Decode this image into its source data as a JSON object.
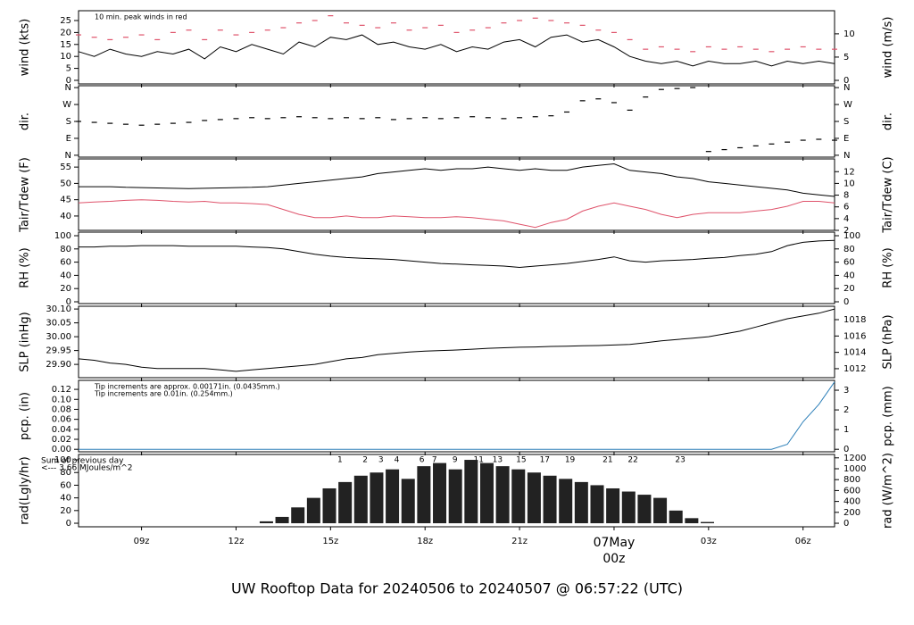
{
  "title": "UW Rooftop Data for 20240506  to  20240507 @ 06:57:22  (UTC)",
  "title_color": "#2297e6",
  "chart_data": [
    {
      "type": "line",
      "ylabel": "wind (kts)",
      "y2label": "wind (m/s)",
      "xlim": [
        7,
        31
      ],
      "ylim": [
        -1.5,
        29.1
      ],
      "yticks": [
        0,
        5,
        10,
        15,
        20,
        25
      ],
      "y2lim": [
        -0.77,
        14.97
      ],
      "y2ticks": [
        0,
        5,
        10
      ],
      "annotations": [
        {
          "text": "10 min. peak winds in red",
          "color": "#df536b"
        }
      ],
      "x": [
        7,
        7.5,
        8,
        8.5,
        9,
        9.5,
        10,
        10.5,
        11,
        11.5,
        12,
        12.5,
        13,
        13.5,
        14,
        14.5,
        15,
        15.5,
        16,
        16.5,
        17,
        17.5,
        18,
        18.5,
        19,
        19.5,
        20,
        20.5,
        21,
        21.5,
        22,
        22.5,
        23,
        23.5,
        24,
        24.5,
        25,
        25.5,
        26,
        26.5,
        27,
        27.5,
        28,
        28.5,
        29,
        29.5,
        30,
        30.5,
        31
      ],
      "series": [
        {
          "name": "wind",
          "color": "#000000",
          "mark": "line",
          "values": [
            12,
            10,
            13,
            11,
            10,
            12,
            11,
            13,
            9,
            14,
            12,
            15,
            13,
            11,
            16,
            14,
            18,
            17,
            19,
            15,
            16,
            14,
            13,
            15,
            12,
            14,
            13,
            16,
            17,
            14,
            18,
            19,
            16,
            17,
            14,
            10,
            8,
            7,
            8,
            6,
            8,
            7,
            7,
            8,
            6,
            8,
            7,
            8,
            7
          ]
        },
        {
          "name": "peak",
          "color": "#df536b",
          "mark": "dash",
          "values": [
            19,
            18,
            17,
            18,
            19,
            17,
            20,
            21,
            17,
            21,
            19,
            20,
            21,
            22,
            24,
            25,
            27,
            24,
            23,
            22,
            24,
            21,
            22,
            23,
            20,
            21,
            22,
            24,
            25,
            26,
            25,
            24,
            23,
            21,
            20,
            17,
            13,
            14,
            13,
            12,
            14,
            13,
            14,
            13,
            12,
            13,
            14,
            13,
            13
          ]
        }
      ]
    },
    {
      "type": "scatter",
      "ylabel": "dir.",
      "y2label": "dir.",
      "xlim": [
        7,
        31
      ],
      "ylim": [
        -10,
        370
      ],
      "yticks": [
        {
          "value": 360,
          "label": "N"
        },
        {
          "value": 270,
          "label": "W"
        },
        {
          "value": 180,
          "label": "S"
        },
        {
          "value": 90,
          "label": "E"
        },
        {
          "value": 0,
          "label": "N"
        }
      ],
      "y2lim": [
        -10,
        370
      ],
      "y2ticks": [
        {
          "value": 360,
          "label": "N"
        },
        {
          "value": 270,
          "label": "W"
        },
        {
          "value": 180,
          "label": "S"
        },
        {
          "value": 90,
          "label": "E"
        },
        {
          "value": 0,
          "label": "N"
        }
      ],
      "x": [
        7,
        7.5,
        8,
        8.5,
        9,
        9.5,
        10,
        10.5,
        11,
        11.5,
        12,
        12.5,
        13,
        13.5,
        14,
        14.5,
        15,
        15.5,
        16,
        16.5,
        17,
        17.5,
        18,
        18.5,
        19,
        19.5,
        20,
        20.5,
        21,
        21.5,
        22,
        22.5,
        23,
        23.5,
        24,
        24.5,
        25,
        25.5,
        26,
        26.5,
        27,
        27.5,
        28,
        28.5,
        29,
        29.5,
        30,
        30.5,
        31
      ],
      "series": [
        {
          "name": "direction",
          "color": "#000000",
          "mark": "dash",
          "values": [
            180,
            175,
            170,
            165,
            160,
            165,
            170,
            175,
            185,
            190,
            195,
            200,
            195,
            200,
            205,
            200,
            195,
            200,
            195,
            200,
            190,
            195,
            200,
            195,
            200,
            205,
            200,
            195,
            200,
            205,
            210,
            230,
            290,
            300,
            280,
            240,
            310,
            350,
            355,
            360,
            20,
            30,
            40,
            50,
            60,
            70,
            80,
            85,
            80
          ]
        }
      ]
    },
    {
      "type": "line",
      "ylabel": "Tair/Tdew (F)",
      "y2label": "Tair/Tdew (C)",
      "xlim": [
        7,
        31
      ],
      "ylim": [
        35.6,
        57.5
      ],
      "yticks": [
        40,
        45,
        50,
        55
      ],
      "y2lim": [
        2,
        14.17
      ],
      "y2ticks": [
        2,
        4,
        6,
        8,
        10,
        12
      ],
      "x": [
        7,
        7.5,
        8,
        8.5,
        9,
        9.5,
        10,
        10.5,
        11,
        11.5,
        12,
        12.5,
        13,
        13.5,
        14,
        14.5,
        15,
        15.5,
        16,
        16.5,
        17,
        17.5,
        18,
        18.5,
        19,
        19.5,
        20,
        20.5,
        21,
        21.5,
        22,
        22.5,
        23,
        23.5,
        24,
        24.5,
        25,
        25.5,
        26,
        26.5,
        27,
        27.5,
        28,
        28.5,
        29,
        29.5,
        30,
        30.5,
        31
      ],
      "series": [
        {
          "name": "Tair",
          "color": "#000000",
          "mark": "line",
          "values": [
            49,
            49,
            49,
            48.8,
            48.7,
            48.6,
            48.5,
            48.4,
            48.5,
            48.6,
            48.7,
            48.8,
            49,
            49.5,
            50,
            50.5,
            51,
            51.5,
            52,
            53,
            53.5,
            54,
            54.5,
            54,
            54.5,
            54.5,
            55,
            54.5,
            54,
            54.5,
            54,
            54,
            55,
            55.5,
            56,
            54,
            53.5,
            53,
            52,
            51.5,
            50.5,
            50,
            49.5,
            49,
            48.5,
            48,
            47,
            46.5,
            46
          ]
        },
        {
          "name": "Tdew",
          "color": "#df536b",
          "mark": "line",
          "values": [
            44,
            44.3,
            44.5,
            44.8,
            45,
            44.8,
            44.5,
            44.3,
            44.5,
            44,
            44,
            43.8,
            43.5,
            42,
            40.5,
            39.5,
            39.5,
            40,
            39.5,
            39.5,
            40,
            39.8,
            39.5,
            39.5,
            39.8,
            39.5,
            39,
            38.5,
            37.5,
            36.5,
            38,
            39,
            41.5,
            43,
            44,
            43,
            42,
            40.5,
            39.5,
            40.5,
            41,
            41,
            41,
            41.5,
            42,
            43,
            44.5,
            44.5,
            44
          ]
        }
      ]
    },
    {
      "type": "line",
      "ylabel": "RH (%)",
      "y2label": "RH (%)",
      "xlim": [
        7,
        31
      ],
      "ylim": [
        -2.7,
        105.4
      ],
      "yticks": [
        0,
        20,
        40,
        60,
        80,
        100
      ],
      "y2lim": [
        -2.7,
        105.4
      ],
      "y2ticks": [
        0,
        20,
        40,
        60,
        80,
        100
      ],
      "x": [
        7,
        7.5,
        8,
        8.5,
        9,
        9.5,
        10,
        10.5,
        11,
        11.5,
        12,
        12.5,
        13,
        13.5,
        14,
        14.5,
        15,
        15.5,
        16,
        16.5,
        17,
        17.5,
        18,
        18.5,
        19,
        19.5,
        20,
        20.5,
        21,
        21.5,
        22,
        22.5,
        23,
        23.5,
        24,
        24.5,
        25,
        25.5,
        26,
        26.5,
        27,
        27.5,
        28,
        28.5,
        29,
        29.5,
        30,
        30.5,
        31
      ],
      "series": [
        {
          "name": "RH",
          "color": "#000000",
          "mark": "line",
          "values": [
            83,
            83,
            84,
            84,
            85,
            85,
            85,
            84,
            84,
            84,
            84,
            83,
            82,
            80,
            76,
            72,
            69,
            67,
            66,
            65,
            64,
            62,
            60,
            58,
            57,
            56,
            55,
            54,
            52,
            54,
            56,
            58,
            61,
            64,
            68,
            62,
            60,
            62,
            63,
            64,
            66,
            67,
            70,
            72,
            76,
            85,
            90,
            92,
            93
          ]
        }
      ]
    },
    {
      "type": "line",
      "ylabel": "SLP (inHg)",
      "y2label": "SLP (hPa)",
      "xlim": [
        7,
        31
      ],
      "ylim": [
        29.852,
        30.11
      ],
      "yticks": [
        {
          "value": 29.9,
          "label": "29.90"
        },
        29.95,
        {
          "value": 30,
          "label": "30.00"
        },
        30.05,
        {
          "value": 30.1,
          "label": "30.10"
        }
      ],
      "y2lim": [
        1010.9,
        1019.64
      ],
      "y2ticks": [
        1012,
        1014,
        1016,
        1018
      ],
      "x": [
        7,
        7.5,
        8,
        8.5,
        9,
        9.5,
        10,
        10.5,
        11,
        11.5,
        12,
        12.5,
        13,
        13.5,
        14,
        14.5,
        15,
        15.5,
        16,
        16.5,
        17,
        17.5,
        18,
        18.5,
        19,
        19.5,
        20,
        20.5,
        21,
        21.5,
        22,
        22.5,
        23,
        23.5,
        24,
        24.5,
        25,
        25.5,
        26,
        26.5,
        27,
        27.5,
        28,
        28.5,
        29,
        29.5,
        30,
        30.5,
        31
      ],
      "series": [
        {
          "name": "SLP",
          "color": "#000000",
          "mark": "line",
          "values": [
            29.92,
            29.915,
            29.905,
            29.9,
            29.89,
            29.885,
            29.885,
            29.885,
            29.885,
            29.88,
            29.875,
            29.88,
            29.885,
            29.89,
            29.895,
            29.9,
            29.91,
            29.92,
            29.925,
            29.935,
            29.94,
            29.945,
            29.948,
            29.95,
            29.952,
            29.955,
            29.958,
            29.96,
            29.962,
            29.963,
            29.965,
            29.966,
            29.967,
            29.968,
            29.97,
            29.972,
            29.978,
            29.985,
            29.99,
            29.995,
            30.0,
            30.01,
            30.02,
            30.035,
            30.05,
            30.065,
            30.075,
            30.085,
            30.1
          ]
        }
      ]
    },
    {
      "type": "line",
      "ylabel": "pcp. (in)",
      "y2label": "pcp. (mm)",
      "xlim": [
        7,
        31
      ],
      "ylim": [
        -0.005,
        0.138
      ],
      "yticks": [
        {
          "value": 0,
          "label": "0.00"
        },
        0.02,
        0.04,
        0.06,
        0.08,
        {
          "value": 0.1,
          "label": "0.10"
        },
        0.12
      ],
      "y2lim": [
        -0.127,
        3.5
      ],
      "y2ticks": [
        0,
        1,
        2,
        3
      ],
      "annotations": [
        {
          "text": "Tip increments are approx. 0.00171in. (0.0435mm.)",
          "color": "#df536b"
        },
        {
          "text": "Tip increments are 0.01in. (0.254mm.)",
          "color": "#2297e6"
        }
      ],
      "x": [
        7,
        7.5,
        8,
        8.5,
        9,
        9.5,
        10,
        10.5,
        11,
        11.5,
        12,
        12.5,
        13,
        13.5,
        14,
        14.5,
        15,
        15.5,
        16,
        16.5,
        17,
        17.5,
        18,
        18.5,
        19,
        19.5,
        20,
        20.5,
        21,
        21.5,
        22,
        22.5,
        23,
        23.5,
        24,
        24.5,
        25,
        25.5,
        26,
        26.5,
        27,
        27.5,
        28,
        28.5,
        29,
        29.5,
        30,
        30.5,
        31
      ],
      "series": [
        {
          "name": "precipitation",
          "color": "#2c7fb8",
          "mark": "line",
          "values": [
            0,
            0,
            0,
            0,
            0,
            0,
            0,
            0,
            0,
            0,
            0,
            0,
            0,
            0,
            0,
            0,
            0,
            0,
            0,
            0,
            0,
            0,
            0,
            0,
            0,
            0,
            0,
            0,
            0,
            0,
            0,
            0,
            0,
            0,
            0,
            0,
            0,
            0,
            0,
            0,
            0,
            0,
            0,
            0,
            0,
            0.01,
            0.055,
            0.09,
            0.135
          ]
        }
      ]
    },
    {
      "type": "bar",
      "ylabel": "rad(Lgly/hr)",
      "y2label": "rad (W/m^2)",
      "xlim": [
        7,
        31
      ],
      "ylim": [
        -5.6,
        108.5
      ],
      "yticks": [
        0,
        20,
        40,
        60,
        80,
        100
      ],
      "y2lim": [
        -65,
        1262
      ],
      "y2ticks": [
        0,
        200,
        400,
        600,
        800,
        1000,
        1200
      ],
      "annotations": [
        {
          "text": "Sum of previous day",
          "color": "#b030d0"
        },
        {
          "text": "<--- 3.66 MJoules/m^2",
          "color": "#b030d0"
        }
      ],
      "hour_marks": {
        "color": "#b030d0",
        "x": [
          15.3,
          16.1,
          16.6,
          17.1,
          17.9,
          18.3,
          18.95,
          19.7,
          20.3,
          21.05,
          21.8,
          22.6,
          23.8,
          24.6,
          26.1
        ],
        "labels": [
          "1",
          "2",
          "3",
          "4",
          "6",
          "7",
          "9",
          "11",
          "13",
          "15",
          "17",
          "19",
          "21",
          "22",
          "23"
        ]
      },
      "xticks": [
        {
          "value": 9,
          "label": "09z"
        },
        {
          "value": 12,
          "label": "12z"
        },
        {
          "value": 15,
          "label": "15z"
        },
        {
          "value": 18,
          "label": "18z"
        },
        {
          "value": 21,
          "label": "21z"
        },
        {
          "value": 24,
          "label": "00z"
        },
        {
          "value": 27,
          "label": "03z"
        },
        {
          "value": 30,
          "label": "06z"
        }
      ],
      "date_label": {
        "x": 24,
        "text": "07May",
        "color": "#df536b"
      },
      "x": [
        7,
        7.5,
        8,
        8.5,
        9,
        9.5,
        10,
        10.5,
        11,
        11.5,
        12,
        12.5,
        13,
        13.5,
        14,
        14.5,
        15,
        15.5,
        16,
        16.5,
        17,
        17.5,
        18,
        18.5,
        19,
        19.5,
        20,
        20.5,
        21,
        21.5,
        22,
        22.5,
        23,
        23.5,
        24,
        24.5,
        25,
        25.5,
        26,
        26.5,
        27,
        27.5,
        28,
        28.5,
        29,
        29.5,
        30,
        30.5,
        31
      ],
      "series": [
        {
          "name": "radiation",
          "color": "#222222",
          "mark": "bar",
          "values": [
            0,
            0,
            0,
            0,
            0,
            0,
            0,
            0,
            0,
            0,
            0,
            0,
            3,
            10,
            25,
            40,
            55,
            65,
            75,
            80,
            85,
            70,
            90,
            95,
            85,
            100,
            95,
            90,
            85,
            80,
            75,
            70,
            65,
            60,
            55,
            50,
            45,
            40,
            20,
            8,
            2,
            0,
            0,
            0,
            0,
            0,
            0,
            0,
            0
          ]
        }
      ]
    }
  ]
}
